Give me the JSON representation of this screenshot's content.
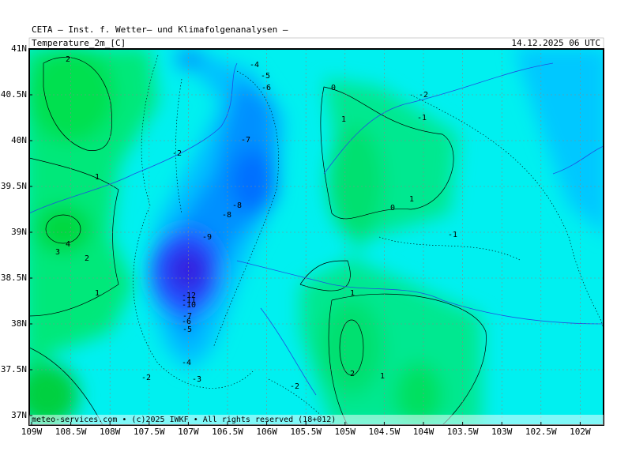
{
  "header": {
    "institute": "CETA — Inst. f. Wetter— und Klimafolgenanalysen —",
    "variable": "Temperature_2m_[C]",
    "datetime": "14.12.2025 06 UTC"
  },
  "map": {
    "lat_labels": [
      "41N",
      "40.5N",
      "40N",
      "39.5N",
      "39N",
      "38.5N",
      "38N",
      "37.5N",
      "37N"
    ],
    "lon_labels": [
      "109W",
      "108.5W",
      "108W",
      "107.5W",
      "107W",
      "106.5W",
      "106W",
      "105.5W",
      "105W",
      "104.5W",
      "104W",
      "103.5W",
      "103W",
      "102.5W",
      "102W"
    ],
    "contour_labels": [
      2,
      -4,
      -5,
      -6,
      0,
      -2,
      -1,
      1,
      -7,
      -2,
      1,
      1,
      0,
      -8,
      -8,
      -9,
      -1,
      4,
      3,
      2,
      1,
      1,
      -12,
      -11,
      -10,
      -7,
      -6,
      -5,
      -4,
      2,
      1,
      -2,
      -3,
      -2
    ]
  },
  "footer": "meteo-services.com • (c)2025 IWKF • All rights reserved (18+012)"
}
